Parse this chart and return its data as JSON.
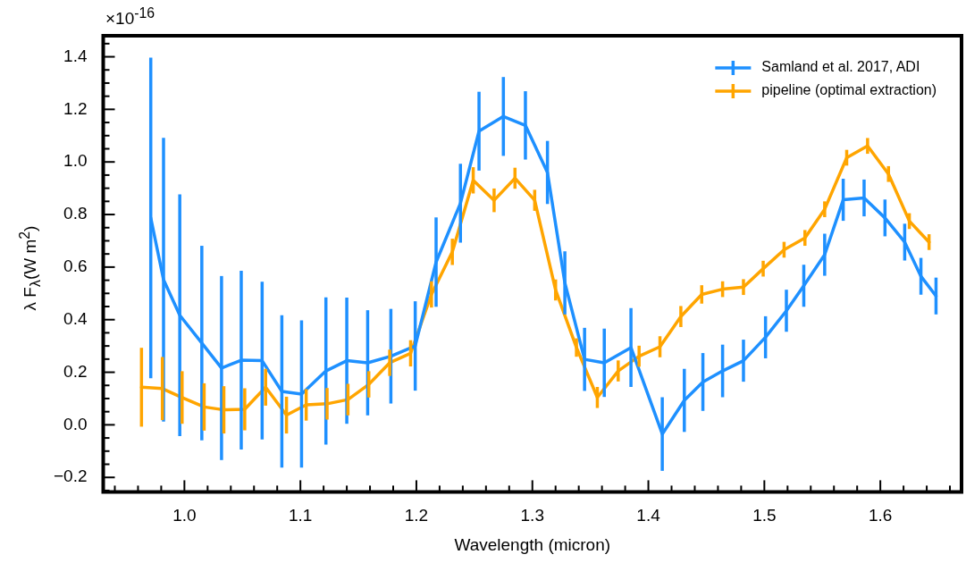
{
  "chart_data": {
    "type": "line",
    "xlabel": "Wavelength (micron)",
    "ylabel": "λ F$_{λ}$(W m$^{2}$)",
    "annotations": [
      "×10$^{-16}$"
    ],
    "xlim": [
      0.93,
      1.67
    ],
    "ylim": [
      -0.255,
      1.48
    ],
    "xticks": [
      {
        "value": 0.94,
        "label": null
      },
      {
        "value": 0.96,
        "label": null
      },
      {
        "value": 0.98,
        "label": null
      },
      {
        "value": 1.0,
        "label": "1.0"
      },
      {
        "value": 1.02,
        "label": null
      },
      {
        "value": 1.04,
        "label": null
      },
      {
        "value": 1.06,
        "label": null
      },
      {
        "value": 1.08,
        "label": null
      },
      {
        "value": 1.1,
        "label": "1.1"
      },
      {
        "value": 1.12,
        "label": null
      },
      {
        "value": 1.14,
        "label": null
      },
      {
        "value": 1.16,
        "label": null
      },
      {
        "value": 1.18,
        "label": null
      },
      {
        "value": 1.2,
        "label": "1.2"
      },
      {
        "value": 1.22,
        "label": null
      },
      {
        "value": 1.24,
        "label": null
      },
      {
        "value": 1.26,
        "label": null
      },
      {
        "value": 1.28,
        "label": null
      },
      {
        "value": 1.3,
        "label": "1.3"
      },
      {
        "value": 1.32,
        "label": null
      },
      {
        "value": 1.34,
        "label": null
      },
      {
        "value": 1.36,
        "label": null
      },
      {
        "value": 1.38,
        "label": null
      },
      {
        "value": 1.4,
        "label": "1.4"
      },
      {
        "value": 1.42,
        "label": null
      },
      {
        "value": 1.44,
        "label": null
      },
      {
        "value": 1.46,
        "label": null
      },
      {
        "value": 1.48,
        "label": null
      },
      {
        "value": 1.5,
        "label": "1.5"
      },
      {
        "value": 1.52,
        "label": null
      },
      {
        "value": 1.54,
        "label": null
      },
      {
        "value": 1.56,
        "label": null
      },
      {
        "value": 1.58,
        "label": null
      },
      {
        "value": 1.6,
        "label": "1.6"
      },
      {
        "value": 1.62,
        "label": null
      },
      {
        "value": 1.64,
        "label": null
      },
      {
        "value": 1.66,
        "label": null
      }
    ],
    "yticks": [
      {
        "value": -0.25,
        "label": null
      },
      {
        "value": -0.2,
        "label": "−0.2"
      },
      {
        "value": -0.15,
        "label": null
      },
      {
        "value": -0.1,
        "label": null
      },
      {
        "value": -0.05,
        "label": null
      },
      {
        "value": 0,
        "label": "0.0"
      },
      {
        "value": 0.05,
        "label": null
      },
      {
        "value": 0.1,
        "label": null
      },
      {
        "value": 0.15,
        "label": null
      },
      {
        "value": 0.2,
        "label": "0.2"
      },
      {
        "value": 0.25,
        "label": null
      },
      {
        "value": 0.3,
        "label": null
      },
      {
        "value": 0.35,
        "label": null
      },
      {
        "value": 0.4,
        "label": "0.4"
      },
      {
        "value": 0.45,
        "label": null
      },
      {
        "value": 0.5,
        "label": null
      },
      {
        "value": 0.55,
        "label": null
      },
      {
        "value": 0.6,
        "label": "0.6"
      },
      {
        "value": 0.65,
        "label": null
      },
      {
        "value": 0.7,
        "label": null
      },
      {
        "value": 0.75,
        "label": null
      },
      {
        "value": 0.8,
        "label": "0.8"
      },
      {
        "value": 0.85,
        "label": null
      },
      {
        "value": 0.9,
        "label": null
      },
      {
        "value": 0.95,
        "label": null
      },
      {
        "value": 1.0,
        "label": "1.0"
      },
      {
        "value": 1.05,
        "label": null
      },
      {
        "value": 1.1,
        "label": null
      },
      {
        "value": 1.15,
        "label": null
      },
      {
        "value": 1.2,
        "label": "1.2"
      },
      {
        "value": 1.25,
        "label": null
      },
      {
        "value": 1.3,
        "label": null
      },
      {
        "value": 1.35,
        "label": null
      },
      {
        "value": 1.4,
        "label": "1.4"
      },
      {
        "value": 1.45,
        "label": null
      }
    ],
    "grid": false,
    "legend": "top right",
    "marker": "none",
    "line_style": "solid",
    "series": [
      {
        "name": "Samland et al. 2017, ADI",
        "color": "#1e90ff",
        "x": [
          0.971,
          0.982,
          0.996,
          1.015,
          1.032,
          1.049,
          1.067,
          1.084,
          1.101,
          1.122,
          1.14,
          1.158,
          1.178,
          1.199,
          1.217,
          1.238,
          1.254,
          1.275,
          1.294,
          1.313,
          1.328,
          1.345,
          1.362,
          1.385,
          1.412,
          1.431,
          1.447,
          1.464,
          1.482,
          1.501,
          1.519,
          1.534,
          1.552,
          1.568,
          1.586,
          1.604,
          1.621,
          1.635,
          1.648
        ],
        "values": [
          0.787,
          0.552,
          0.417,
          0.311,
          0.216,
          0.246,
          0.244,
          0.127,
          0.117,
          0.205,
          0.244,
          0.236,
          0.261,
          0.3,
          0.619,
          0.843,
          1.117,
          1.173,
          1.139,
          0.96,
          0.54,
          0.249,
          0.236,
          0.294,
          -0.035,
          0.093,
          0.163,
          0.205,
          0.244,
          0.333,
          0.434,
          0.529,
          0.647,
          0.856,
          0.863,
          0.787,
          0.695,
          0.565,
          0.49
        ],
        "errors": [
          0.61,
          0.54,
          0.46,
          0.37,
          0.35,
          0.34,
          0.3,
          0.29,
          0.28,
          0.28,
          0.24,
          0.2,
          0.18,
          0.17,
          0.17,
          0.15,
          0.15,
          0.15,
          0.13,
          0.12,
          0.12,
          0.12,
          0.13,
          0.15,
          0.14,
          0.12,
          0.11,
          0.1,
          0.08,
          0.08,
          0.08,
          0.08,
          0.08,
          0.08,
          0.07,
          0.07,
          0.07,
          0.07,
          0.07
        ]
      },
      {
        "name": "pipeline (optimal extraction)",
        "color": "#ffa500",
        "x": [
          0.963,
          0.981,
          0.998,
          1.017,
          1.034,
          1.052,
          1.07,
          1.088,
          1.105,
          1.123,
          1.141,
          1.159,
          1.177,
          1.195,
          1.213,
          1.231,
          1.249,
          1.267,
          1.285,
          1.302,
          1.32,
          1.338,
          1.356,
          1.374,
          1.392,
          1.41,
          1.428,
          1.446,
          1.464,
          1.482,
          1.499,
          1.517,
          1.535,
          1.552,
          1.571,
          1.589,
          1.607,
          1.625,
          1.642
        ],
        "values": [
          0.143,
          0.138,
          0.104,
          0.068,
          0.057,
          0.059,
          0.143,
          0.037,
          0.076,
          0.08,
          0.096,
          0.154,
          0.236,
          0.272,
          0.496,
          0.658,
          0.93,
          0.854,
          0.938,
          0.854,
          0.513,
          0.294,
          0.104,
          0.205,
          0.261,
          0.297,
          0.412,
          0.496,
          0.516,
          0.524,
          0.594,
          0.666,
          0.711,
          0.82,
          1.016,
          1.061,
          0.954,
          0.775,
          0.695
        ],
        "errors": [
          0.15,
          0.12,
          0.1,
          0.09,
          0.09,
          0.08,
          0.07,
          0.07,
          0.06,
          0.06,
          0.06,
          0.05,
          0.05,
          0.05,
          0.05,
          0.05,
          0.05,
          0.045,
          0.04,
          0.04,
          0.04,
          0.035,
          0.04,
          0.04,
          0.04,
          0.04,
          0.04,
          0.035,
          0.03,
          0.03,
          0.03,
          0.03,
          0.03,
          0.03,
          0.03,
          0.03,
          0.03,
          0.03,
          0.03
        ]
      }
    ]
  }
}
